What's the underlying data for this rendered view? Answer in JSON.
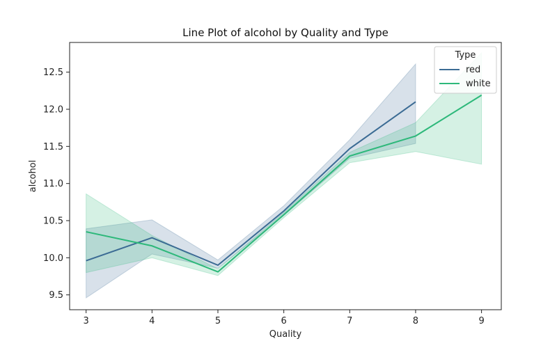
{
  "chart_data": {
    "type": "line",
    "title": "Line Plot of alcohol by Quality and Type",
    "xlabel": "Quality",
    "ylabel": "alcohol",
    "xlim": [
      2.75,
      9.3
    ],
    "ylim": [
      9.3,
      12.9
    ],
    "x_ticks": [
      3,
      4,
      5,
      6,
      7,
      8,
      9
    ],
    "y_ticks": [
      9.5,
      10.0,
      10.5,
      11.0,
      11.5,
      12.0,
      12.5
    ],
    "grid": false,
    "legend": {
      "title": "Type",
      "placement": "top-right"
    },
    "series": [
      {
        "name": "red",
        "color": "#3b6b94",
        "x": [
          3,
          4,
          5,
          6,
          7,
          8
        ],
        "values": [
          9.96,
          10.27,
          9.9,
          10.63,
          11.47,
          12.1
        ],
        "ci_lower": [
          9.46,
          10.05,
          9.86,
          10.57,
          11.34,
          11.54
        ],
        "ci_upper": [
          10.39,
          10.51,
          9.97,
          10.7,
          11.59,
          12.61
        ]
      },
      {
        "name": "white",
        "color": "#2db87a",
        "x": [
          3,
          4,
          5,
          6,
          7,
          8,
          9
        ],
        "values": [
          10.35,
          10.16,
          9.81,
          10.58,
          11.37,
          11.64,
          12.19
        ],
        "ci_lower": [
          9.8,
          10.0,
          9.76,
          10.54,
          11.28,
          11.43,
          11.26
        ],
        "ci_upper": [
          10.86,
          10.3,
          9.85,
          10.61,
          11.42,
          11.82,
          12.76
        ]
      }
    ]
  }
}
